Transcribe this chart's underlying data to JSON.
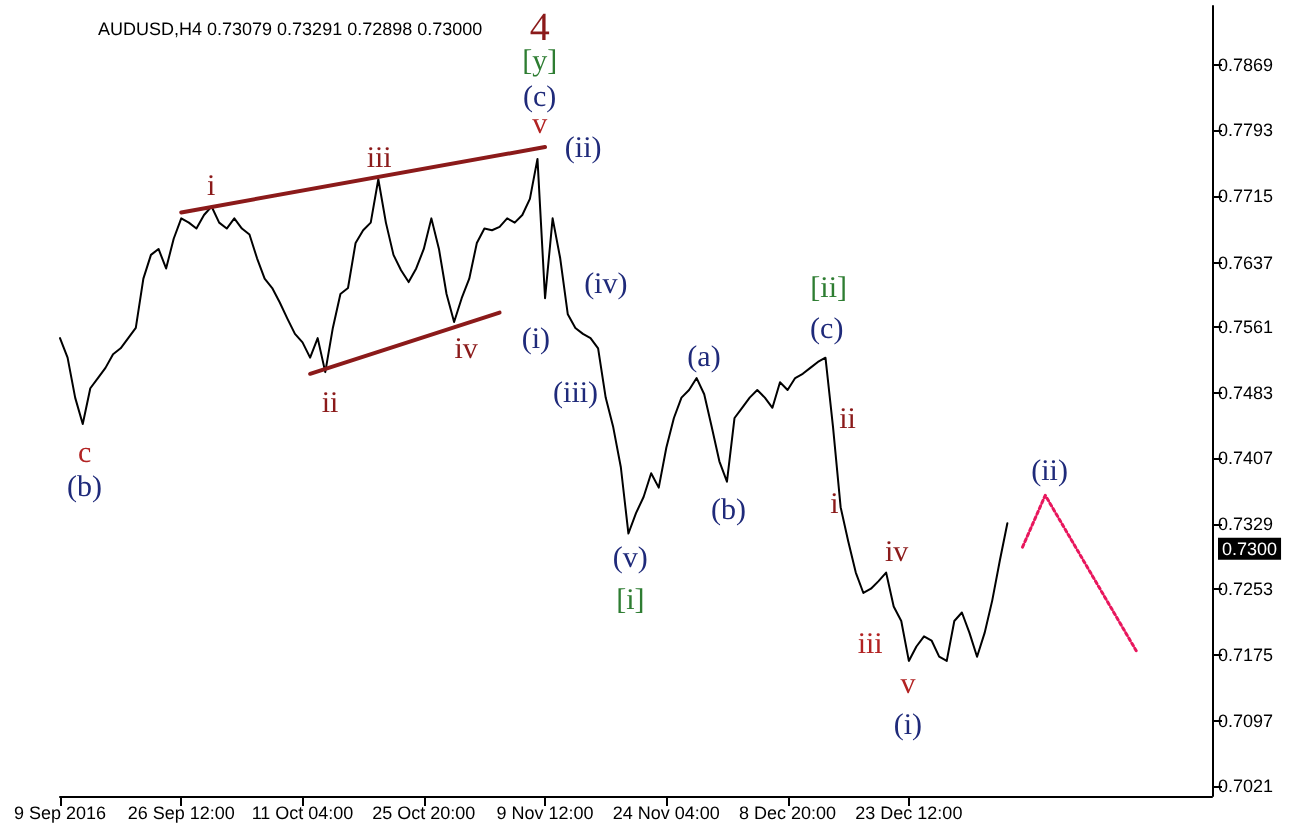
{
  "chart_data": {
    "type": "line",
    "title": "AUDUSD,H4 0.73079 0.73291 0.72898 0.73000",
    "categories": [
      "9 Sep 2016",
      null,
      null,
      null,
      null,
      null,
      null,
      null,
      null,
      null,
      null,
      null,
      null,
      null,
      null,
      null,
      "26 Sep 12:00",
      null,
      null,
      null,
      null,
      null,
      null,
      null,
      null,
      null,
      null,
      null,
      null,
      null,
      null,
      null,
      "11 Oct 04:00",
      null,
      null,
      null,
      null,
      null,
      null,
      null,
      null,
      null,
      null,
      null,
      null,
      null,
      null,
      null,
      "25 Oct 20:00",
      null,
      null,
      null,
      null,
      null,
      null,
      null,
      null,
      null,
      null,
      null,
      null,
      null,
      null,
      null,
      "9 Nov 12:00",
      null,
      null,
      null,
      null,
      null,
      null,
      null,
      null,
      null,
      null,
      null,
      null,
      null,
      null,
      null,
      "24 Nov 04:00",
      null,
      null,
      null,
      null,
      null,
      null,
      null,
      null,
      null,
      null,
      null,
      null,
      null,
      null,
      null,
      "8 Dec 20:00",
      null,
      null,
      null,
      null,
      null,
      null,
      null,
      null,
      null,
      null,
      null,
      null,
      null,
      null,
      null,
      "23 Dec 12:00",
      null,
      null,
      null,
      null,
      null,
      null,
      null,
      null,
      null,
      null,
      null,
      null,
      null,
      null,
      null,
      null,
      null,
      null,
      null,
      null,
      null,
      null,
      null,
      null,
      null,
      null,
      null,
      null,
      null,
      null,
      null,
      null,
      null,
      null,
      null,
      null,
      null,
      null,
      null,
      null
    ],
    "ylim": [
      0.7009,
      0.7939
    ],
    "yticks": [
      0.7021,
      0.7097,
      0.7175,
      0.7253,
      {
        "value": 0.73,
        "label": "0.7300"
      },
      0.7329,
      0.7407,
      0.7483,
      0.7561,
      0.7637,
      0.7715,
      0.7793,
      0.7869
    ],
    "grid": false,
    "marker": "none",
    "series": [
      {
        "color": "#000000",
        "line_style": "solid",
        "values": [
          0.7548,
          0.7525,
          0.7478,
          0.7447,
          0.7489,
          0.7501,
          0.7513,
          0.7529,
          0.7536,
          0.7548,
          0.756,
          0.7618,
          0.7646,
          0.7653,
          0.763,
          0.7665,
          0.7689,
          0.7684,
          0.7677,
          0.7693,
          0.7703,
          0.7684,
          0.7677,
          0.7689,
          0.7677,
          0.767,
          0.7642,
          0.7618,
          0.7607,
          0.759,
          0.7571,
          0.7553,
          0.7543,
          0.7525,
          0.7548,
          0.7508,
          0.756,
          0.76,
          0.7607,
          0.766,
          0.7675,
          0.7684,
          0.7735,
          0.7684,
          0.7646,
          0.7628,
          0.7614,
          0.763,
          0.7653,
          0.7689,
          0.7653,
          0.76,
          0.7567,
          0.7595,
          0.7618,
          0.766,
          0.7677,
          0.7675,
          0.7679,
          0.7689,
          0.7684,
          0.7693,
          0.7712,
          0.7759,
          0.7595,
          0.7689,
          0.7642,
          0.7576,
          0.756,
          0.7553,
          0.7548,
          0.7536,
          0.7478,
          0.7443,
          0.7396,
          0.7318,
          0.7342,
          0.7361,
          0.7389,
          0.7372,
          0.7419,
          0.7454,
          0.7478,
          0.7487,
          0.7501,
          0.7482,
          0.7443,
          0.7403,
          0.7379,
          0.7454,
          0.7466,
          0.7478,
          0.7487,
          0.7478,
          0.7466,
          0.7496,
          0.7487,
          0.7501,
          0.7506,
          0.7513,
          0.752,
          0.7525,
          0.7443,
          0.7349,
          0.7309,
          0.7272,
          0.7248,
          0.7253,
          0.7262,
          0.7272,
          0.7232,
          0.7215,
          0.7168,
          0.7185,
          0.7197,
          0.7192,
          0.7173,
          0.7168,
          0.7215,
          0.7225,
          0.7201,
          0.7173,
          0.7201,
          0.7239,
          0.7286,
          0.733,
          null,
          null,
          null,
          null,
          null,
          null,
          null,
          null,
          null,
          null,
          null,
          null,
          null,
          null,
          null,
          null,
          null,
          null,
          null,
          null,
          null,
          null,
          null,
          null,
          null,
          null,
          null
        ]
      },
      {
        "color": "#8b1a1a",
        "line_style": "solid",
        "values": [
          null,
          null,
          null,
          null,
          null,
          null,
          null,
          null,
          null,
          null,
          null,
          null,
          null,
          null,
          null,
          null,
          0.7696,
          null,
          null,
          null,
          null,
          null,
          null,
          null,
          null,
          null,
          null,
          null,
          null,
          null,
          null,
          null,
          null,
          null,
          null,
          null,
          null,
          null,
          null,
          null,
          null,
          null,
          null,
          null,
          null,
          null,
          null,
          null,
          null,
          null,
          null,
          null,
          null,
          null,
          null,
          null,
          null,
          null,
          null,
          null,
          null,
          null,
          null,
          null,
          0.7773,
          null,
          null,
          null,
          null,
          null,
          null,
          null,
          null,
          null,
          null,
          null,
          null,
          null,
          null,
          null,
          null,
          null,
          null,
          null,
          null,
          null,
          null,
          null,
          null,
          null,
          null,
          null,
          null,
          null,
          null,
          null,
          null,
          null,
          null,
          null,
          null,
          null,
          null,
          null,
          null,
          null,
          null,
          null,
          null,
          null,
          null,
          null,
          null,
          null,
          null,
          null,
          null,
          null,
          null,
          null,
          null,
          null,
          null,
          null,
          null,
          null,
          null,
          null,
          null,
          null,
          null,
          null,
          null,
          null,
          null,
          null,
          null,
          null,
          null,
          null,
          null,
          null,
          null,
          null,
          null,
          null,
          null,
          null,
          null,
          null,
          null,
          null,
          null
        ]
      },
      {
        "color": "#8b1a1a",
        "line_style": "solid",
        "values": [
          null,
          null,
          null,
          null,
          null,
          null,
          null,
          null,
          null,
          null,
          null,
          null,
          null,
          null,
          null,
          null,
          null,
          null,
          null,
          null,
          null,
          null,
          null,
          null,
          null,
          null,
          null,
          null,
          null,
          null,
          null,
          null,
          null,
          0.7506,
          null,
          null,
          null,
          null,
          null,
          null,
          null,
          null,
          null,
          null,
          null,
          null,
          null,
          null,
          null,
          null,
          null,
          null,
          null,
          null,
          null,
          null,
          null,
          null,
          0.7578,
          null,
          null,
          null,
          null,
          null,
          null,
          null,
          null,
          null,
          null,
          null,
          null,
          null,
          null,
          null,
          null,
          null,
          null,
          null,
          null,
          null,
          null,
          null,
          null,
          null,
          null,
          null,
          null,
          null,
          null,
          null,
          null,
          null,
          null,
          null,
          null,
          null,
          null,
          null,
          null,
          null,
          null,
          null,
          null,
          null,
          null,
          null,
          null,
          null,
          null,
          null,
          null,
          null,
          null,
          null,
          null,
          null,
          null,
          null,
          null,
          null,
          null,
          null,
          null,
          null,
          null,
          null,
          null,
          null,
          null,
          null,
          null,
          null,
          null,
          null,
          null,
          null,
          null,
          null,
          null,
          null,
          null,
          null,
          null,
          null,
          null,
          null,
          null,
          null,
          null,
          null,
          null,
          null,
          null
        ]
      },
      {
        "color": "#e8175d",
        "line_style": "dotted",
        "values": [
          null,
          null,
          null,
          null,
          null,
          null,
          null,
          null,
          null,
          null,
          null,
          null,
          null,
          null,
          null,
          null,
          null,
          null,
          null,
          null,
          null,
          null,
          null,
          null,
          null,
          null,
          null,
          null,
          null,
          null,
          null,
          null,
          null,
          null,
          null,
          null,
          null,
          null,
          null,
          null,
          null,
          null,
          null,
          null,
          null,
          null,
          null,
          null,
          null,
          null,
          null,
          null,
          null,
          null,
          null,
          null,
          null,
          null,
          null,
          null,
          null,
          null,
          null,
          null,
          null,
          null,
          null,
          null,
          null,
          null,
          null,
          null,
          null,
          null,
          null,
          null,
          null,
          null,
          null,
          null,
          null,
          null,
          null,
          null,
          null,
          null,
          null,
          null,
          null,
          null,
          null,
          null,
          null,
          null,
          null,
          null,
          null,
          null,
          null,
          null,
          null,
          null,
          null,
          null,
          null,
          null,
          null,
          null,
          null,
          null,
          null,
          null,
          null,
          null,
          null,
          null,
          null,
          null,
          null,
          null,
          null,
          null,
          null,
          null,
          null,
          null,
          null,
          0.7302,
          null,
          null,
          0.7363,
          null,
          null,
          null,
          null,
          null,
          null,
          null,
          null,
          null,
          null,
          null,
          0.718,
          null,
          null,
          null,
          null,
          null,
          null,
          null,
          null,
          null,
          null
        ]
      }
    ],
    "annotations": [
      "4",
      "[y]",
      "(c)",
      "v",
      "(ii)",
      "i",
      "iii",
      "ii",
      "iv",
      "(i)",
      "(iv)",
      "(iii)",
      "(v)",
      "[i]",
      "(a)",
      "(b)",
      "[ii]",
      "(c)",
      "ii",
      "i",
      "iv",
      "iii",
      "v",
      "(i)",
      "(ii)",
      "c",
      "(b)"
    ]
  }
}
